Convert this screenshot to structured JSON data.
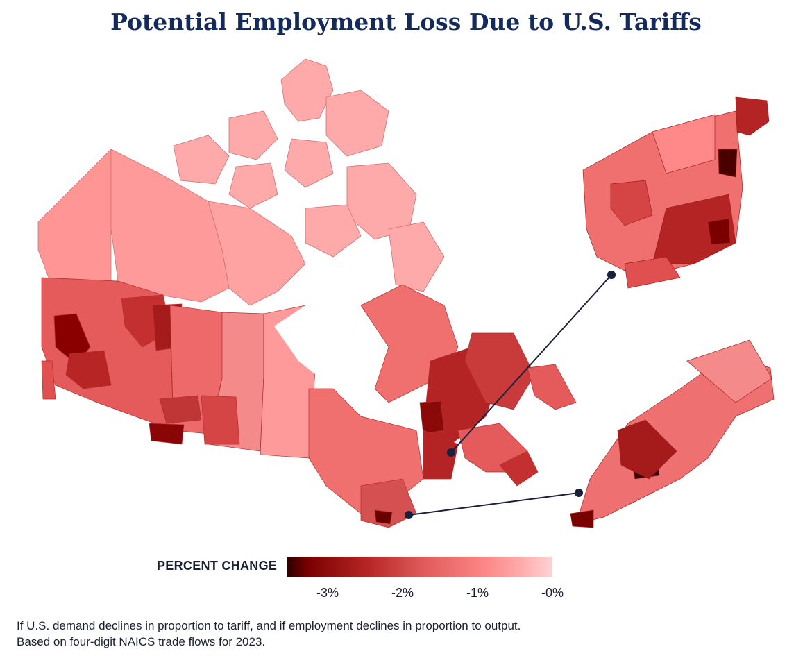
{
  "title": "Potential Employment Loss Due to U.S. Tariffs",
  "legend": {
    "label": "PERCENT CHANGE",
    "ticks": [
      "-3%",
      "-2%",
      "-1%",
      "-0%"
    ],
    "colors": [
      "#2a0000",
      "#7a0000",
      "#b52424",
      "#e05c5c",
      "#fb8080",
      "#ffa9a9",
      "#ffd3d3"
    ]
  },
  "insets": [
    "quebec-corridor-inset",
    "southern-ontario-inset"
  ],
  "footnote": {
    "line1": "If U.S. demand declines in proportion to tariff, and if employment declines in proportion to output.",
    "line2": "Based on four-digit NAICS trade flows for 2023."
  }
}
